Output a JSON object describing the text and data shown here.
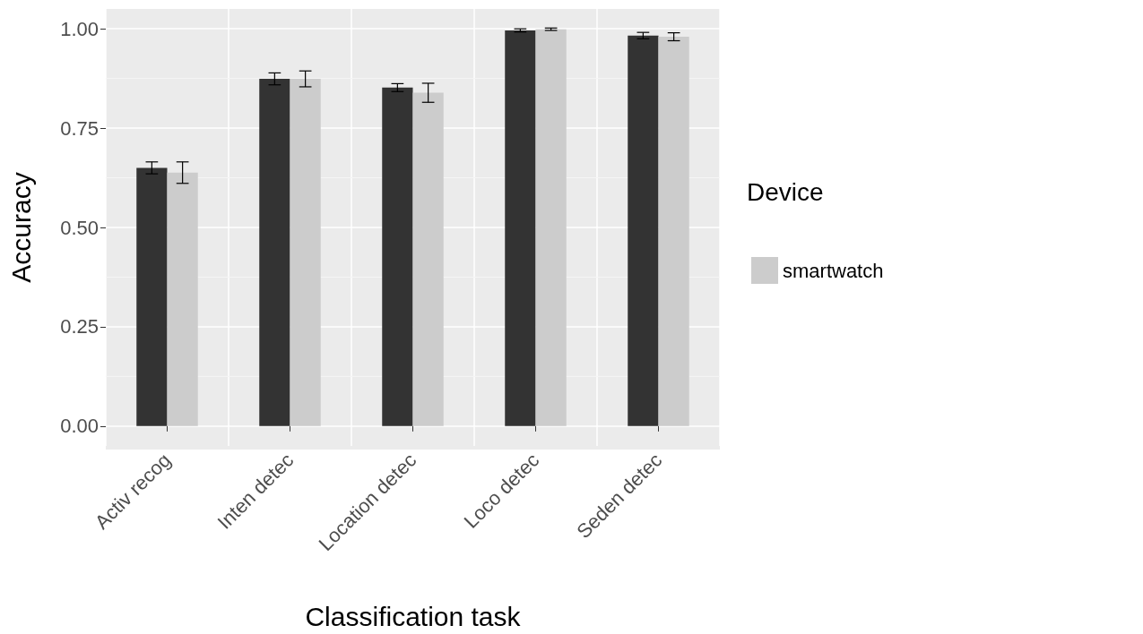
{
  "chart_data": {
    "type": "bar",
    "xlabel": "Classification task",
    "ylabel": "Accuracy",
    "legend_title": "Device",
    "categories": [
      "Activ recog",
      "Inten detec",
      "Location detec",
      "Loco detec",
      "Seden detec"
    ],
    "series": [
      {
        "color": "#333333",
        "values": [
          0.65,
          0.874,
          0.852,
          0.996,
          0.983
        ],
        "errors": [
          0.015,
          0.015,
          0.01,
          0.004,
          0.008
        ]
      },
      {
        "name": "smartwatch",
        "color": "#cccccc",
        "values": [
          0.638,
          0.874,
          0.839,
          0.999,
          0.98
        ],
        "errors": [
          0.027,
          0.02,
          0.024,
          0.003,
          0.01
        ]
      }
    ],
    "ylim": [
      -0.05,
      1.05
    ],
    "yticks": [
      {
        "value": 0,
        "label": "0.00"
      },
      {
        "value": 0.25,
        "label": "0.25"
      },
      {
        "value": 0.5,
        "label": "0.50"
      },
      {
        "value": 0.75,
        "label": "0.75"
      },
      {
        "value": 1,
        "label": "1.00"
      }
    ],
    "grid": true,
    "legend": "right"
  }
}
